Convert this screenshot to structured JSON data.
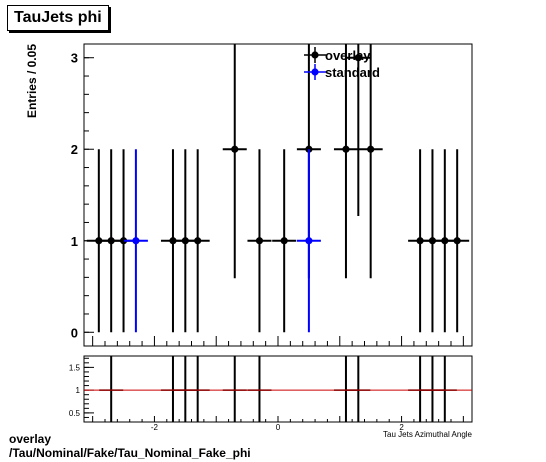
{
  "title": "TauJets phi",
  "footer": {
    "line1": "overlay",
    "line2": "/Tau/Nominal/Fake/Tau_Nominal_Fake_phi"
  },
  "chart_data": [
    {
      "type": "scatter",
      "ylabel": "Entries / 0.05",
      "xlim": [
        -3.14,
        3.14
      ],
      "ylim": [
        -0.15,
        3.15
      ],
      "yticks": [
        0,
        1,
        2,
        3
      ],
      "legend_position": "top-right",
      "series": [
        {
          "name": "overlay",
          "color": "#000000",
          "points": [
            {
              "x": -2.9,
              "y": 1,
              "err": 1.0
            },
            {
              "x": -2.7,
              "y": 1,
              "err": 1.0
            },
            {
              "x": -2.5,
              "y": 1,
              "err": 1.0
            },
            {
              "x": -1.7,
              "y": 1,
              "err": 1.0
            },
            {
              "x": -1.5,
              "y": 1,
              "err": 1.0
            },
            {
              "x": -1.3,
              "y": 1,
              "err": 1.0
            },
            {
              "x": -0.7,
              "y": 2,
              "err": 1.41
            },
            {
              "x": -0.3,
              "y": 1,
              "err": 1.0
            },
            {
              "x": 0.1,
              "y": 1,
              "err": 1.0
            },
            {
              "x": 0.5,
              "y": 2,
              "err": 1.41
            },
            {
              "x": 1.1,
              "y": 2,
              "err": 1.41
            },
            {
              "x": 1.3,
              "y": 3,
              "err": 1.73
            },
            {
              "x": 1.5,
              "y": 2,
              "err": 1.41
            },
            {
              "x": 2.3,
              "y": 1,
              "err": 1.0
            },
            {
              "x": 2.5,
              "y": 1,
              "err": 1.0
            },
            {
              "x": 2.7,
              "y": 1,
              "err": 1.0
            },
            {
              "x": 2.9,
              "y": 1,
              "err": 1.0
            }
          ]
        },
        {
          "name": "standard",
          "color": "#0000ff",
          "points": [
            {
              "x": -2.3,
              "y": 1,
              "err": 1.0
            },
            {
              "x": 0.5,
              "y": 1,
              "err": 1.0
            }
          ]
        }
      ]
    },
    {
      "type": "scatter",
      "xlabel": "Tau Jets Azimuthal Angle",
      "xlim": [
        -3.14,
        3.14
      ],
      "ylim": [
        0.3,
        1.75
      ],
      "xticks": [
        -2,
        0,
        2
      ],
      "yticks": [
        0.5,
        1,
        1.5
      ],
      "reference_line": {
        "y": 1,
        "color": "#cc0000"
      },
      "series": [
        {
          "name": "ratio",
          "color": "#000000",
          "points": [
            {
              "x": -2.7,
              "y": 1,
              "err": 1.0
            },
            {
              "x": -1.7,
              "y": 1,
              "err": 1.0
            },
            {
              "x": -1.5,
              "y": 1,
              "err": 1.0
            },
            {
              "x": -1.3,
              "y": 1,
              "err": 1.0
            },
            {
              "x": -0.7,
              "y": 1,
              "err": 1.0
            },
            {
              "x": -0.3,
              "y": 1,
              "err": 1.0
            },
            {
              "x": 1.1,
              "y": 1,
              "err": 1.0
            },
            {
              "x": 1.3,
              "y": 1,
              "err": 1.0
            },
            {
              "x": 2.3,
              "y": 1,
              "err": 1.0
            },
            {
              "x": 2.5,
              "y": 1,
              "err": 1.0
            },
            {
              "x": 2.7,
              "y": 1,
              "err": 1.0
            }
          ]
        }
      ]
    }
  ]
}
